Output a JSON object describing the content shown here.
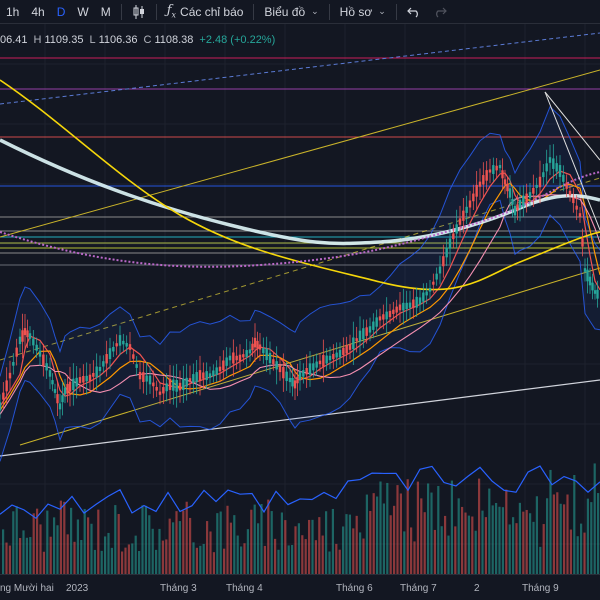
{
  "toolbar": {
    "timeframes": [
      "1h",
      "4h",
      "D",
      "W",
      "M"
    ],
    "active_timeframe": "D",
    "indicators_label": "Các chỉ báo",
    "chart_type_label": "Biểu đồ",
    "profile_label": "Hồ sơ",
    "icons": [
      "candles-icon",
      "fx-icon",
      "undo-icon",
      "redo-icon"
    ]
  },
  "ohlc": {
    "open_partial": "06.41",
    "h_label": "H",
    "high": "1109.35",
    "l_label": "L",
    "low": "1106.36",
    "c_label": "C",
    "close": "1108.38",
    "change": "+2.48 (+0.22%)"
  },
  "x_axis": {
    "labels": [
      "ng Mười hai",
      "2023",
      "Tháng 3",
      "Tháng 4",
      "Tháng 6",
      "Tháng 7",
      "2",
      "Tháng 9"
    ]
  },
  "colors": {
    "background": "#131722",
    "up": "#26a69a",
    "down": "#ef5350",
    "accent": "#2962ff",
    "ma_slow": "#e0f7fa",
    "ma_yellow": "#f5d60a",
    "channel": "#c9b32a"
  },
  "chart_data": {
    "type": "candlestick",
    "title": "",
    "xlabel": "",
    "ylabel": "",
    "x_ticks": [
      "ng Mười hai",
      "2023",
      "Tháng 3",
      "Tháng 4",
      "Tháng 6",
      "Tháng 7",
      "2",
      "Tháng 9"
    ],
    "last_bar": {
      "high": 1109.35,
      "low": 1106.36,
      "close": 1108.38,
      "change": 2.48,
      "change_pct": 0.22
    },
    "price_trend": [
      [
        0,
        62
      ],
      [
        10,
        48
      ],
      [
        20,
        32
      ],
      [
        25,
        28
      ],
      [
        30,
        30
      ],
      [
        40,
        38
      ],
      [
        50,
        47
      ],
      [
        55,
        55
      ],
      [
        60,
        62
      ],
      [
        65,
        55
      ],
      [
        70,
        53
      ],
      [
        80,
        50
      ],
      [
        90,
        49
      ],
      [
        100,
        45
      ],
      [
        110,
        38
      ],
      [
        120,
        32
      ],
      [
        130,
        35
      ],
      [
        140,
        48
      ],
      [
        150,
        50
      ],
      [
        160,
        56
      ],
      [
        170,
        52
      ],
      [
        180,
        53
      ],
      [
        190,
        50
      ],
      [
        200,
        48
      ],
      [
        210,
        48
      ],
      [
        220,
        45
      ],
      [
        230,
        40
      ],
      [
        240,
        40
      ],
      [
        250,
        37
      ],
      [
        255,
        33
      ],
      [
        260,
        35
      ],
      [
        270,
        40
      ],
      [
        280,
        45
      ],
      [
        290,
        50
      ],
      [
        295,
        52
      ],
      [
        300,
        48
      ],
      [
        310,
        45
      ],
      [
        320,
        42
      ],
      [
        330,
        40
      ],
      [
        340,
        38
      ],
      [
        350,
        35
      ],
      [
        360,
        30
      ],
      [
        370,
        27
      ],
      [
        380,
        22
      ],
      [
        390,
        20
      ],
      [
        400,
        17
      ],
      [
        410,
        16
      ],
      [
        420,
        14
      ],
      [
        430,
        9
      ],
      [
        440,
        0
      ],
      [
        450,
        -12
      ],
      [
        460,
        -22
      ],
      [
        470,
        -30
      ],
      [
        480,
        -39
      ],
      [
        490,
        -45
      ],
      [
        500,
        -47
      ],
      [
        505,
        -40
      ],
      [
        510,
        -35
      ],
      [
        515,
        -27
      ],
      [
        520,
        -30
      ],
      [
        530,
        -34
      ],
      [
        540,
        -40
      ],
      [
        550,
        -50
      ],
      [
        560,
        -45
      ],
      [
        570,
        -35
      ],
      [
        580,
        -25
      ],
      [
        585,
        0
      ],
      [
        590,
        5
      ],
      [
        595,
        10
      ],
      [
        600,
        12
      ]
    ]
  }
}
